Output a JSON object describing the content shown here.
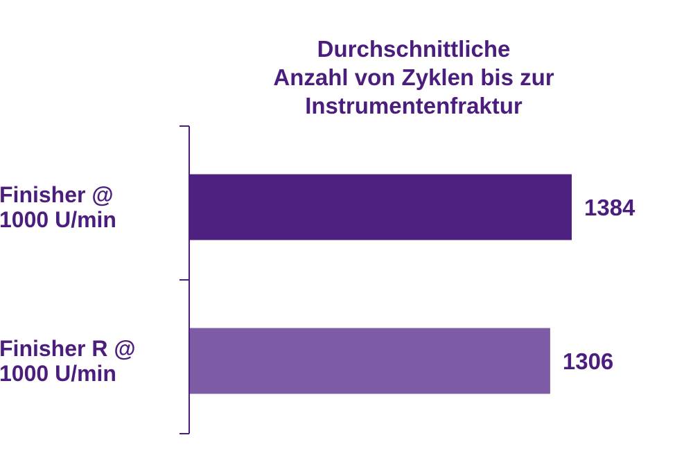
{
  "chart_data": {
    "type": "bar",
    "orientation": "horizontal",
    "title_lines": [
      "Durchschnittliche",
      "Anzahl von Zyklen bis zur",
      "Instrumentenfraktur"
    ],
    "categories": [
      [
        "Finisher @",
        "1000 U/min"
      ],
      [
        "Finisher R @",
        "1000 U/min"
      ]
    ],
    "values": [
      1384,
      1306
    ],
    "value_labels": [
      "1384",
      "1306"
    ],
    "xlim": [
      0,
      1384
    ],
    "grid": false,
    "legend": "none"
  },
  "colors": {
    "text": "#4b1e7e",
    "axis": "#4b1e7e",
    "bars": [
      "#4e2180",
      "#7e5ca5"
    ]
  }
}
